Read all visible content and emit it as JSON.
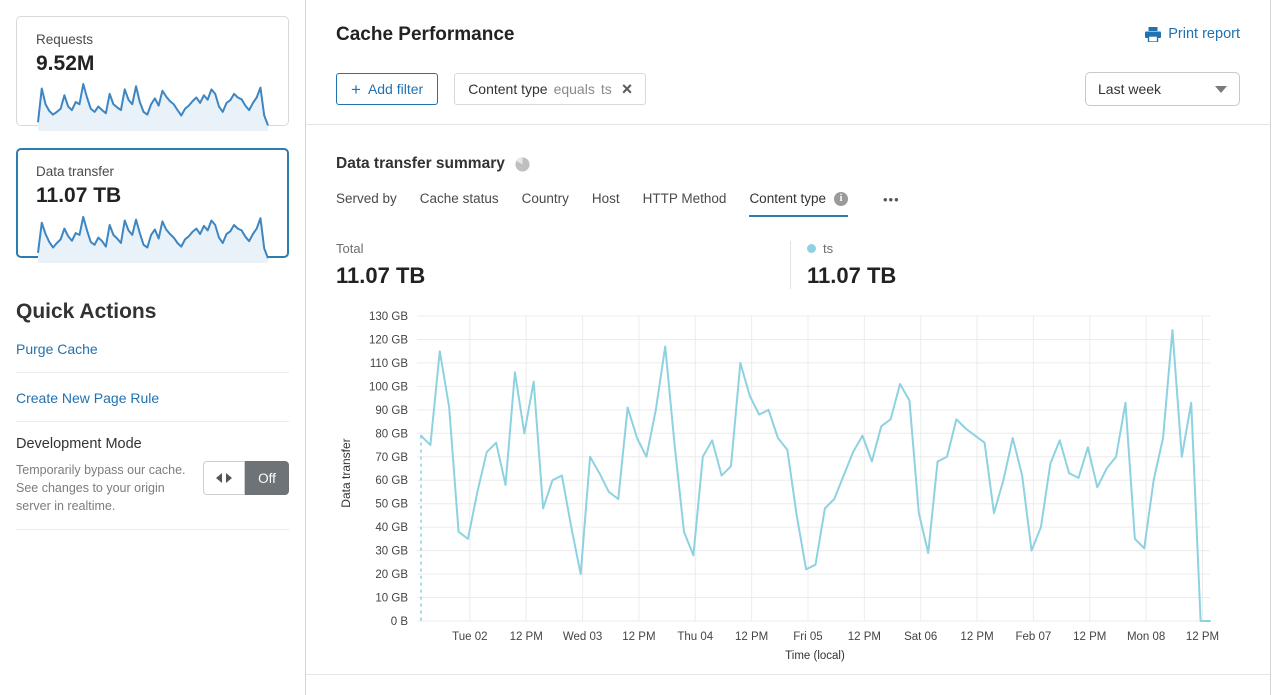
{
  "colors": {
    "accent_blue": "#2172b0",
    "tab_underline": "#2c7cb0",
    "chart_line": "#8ed2e1",
    "spark_line": "#3e86c2",
    "spark_fill": "#e9f1f9",
    "toggle_off_bg": "#6d7377",
    "grid": "#ececec",
    "text_dark": "#333333",
    "text_muted": "#7a7a7a"
  },
  "sidebar": {
    "cards": [
      {
        "label": "Requests",
        "value": "9.52M",
        "selected": false,
        "spark": [
          15,
          90,
          55,
          40,
          32,
          38,
          45,
          75,
          50,
          42,
          60,
          55,
          100,
          70,
          45,
          38,
          50,
          42,
          35,
          78,
          55,
          48,
          42,
          88,
          65,
          55,
          95,
          60,
          38,
          32,
          55,
          68,
          52,
          85,
          72,
          62,
          55,
          42,
          30,
          45,
          52,
          62,
          70,
          58,
          75,
          65,
          88,
          78,
          50,
          38,
          58,
          64,
          78,
          70,
          66,
          52,
          42,
          58,
          70,
          92,
          30,
          8
        ]
      },
      {
        "label": "Data transfer",
        "value": "11.07 TB",
        "selected": true,
        "spark": [
          18,
          85,
          60,
          42,
          30,
          40,
          48,
          72,
          55,
          45,
          62,
          58,
          98,
          68,
          42,
          36,
          52,
          44,
          32,
          80,
          58,
          50,
          40,
          90,
          68,
          58,
          92,
          62,
          36,
          30,
          58,
          70,
          50,
          88,
          70,
          60,
          52,
          40,
          32,
          48,
          55,
          65,
          72,
          60,
          78,
          68,
          90,
          80,
          52,
          40,
          60,
          66,
          80,
          72,
          68,
          54,
          44,
          60,
          72,
          95,
          28,
          6
        ]
      }
    ],
    "quick_actions": {
      "title": "Quick Actions",
      "links": [
        "Purge Cache",
        "Create New Page Rule"
      ],
      "dev_mode": {
        "title": "Development Mode",
        "description": "Temporarily bypass our cache. See changes to your origin server in realtime.",
        "state": "Off"
      }
    }
  },
  "header": {
    "title": "Cache Performance",
    "print_label": "Print report"
  },
  "filters": {
    "add_label": "Add filter",
    "chip": {
      "field": "Content type",
      "operator": "equals",
      "value": "ts"
    },
    "time_range": "Last week"
  },
  "summary": {
    "title": "Data transfer summary",
    "tabs": [
      {
        "label": "Served by",
        "active": false
      },
      {
        "label": "Cache status",
        "active": false
      },
      {
        "label": "Country",
        "active": false
      },
      {
        "label": "Host",
        "active": false
      },
      {
        "label": "HTTP Method",
        "active": false
      },
      {
        "label": "Content type",
        "active": true
      }
    ],
    "total_label": "Total",
    "total_value": "11.07 TB",
    "legend": {
      "name": "ts",
      "value": "11.07 TB"
    }
  },
  "chart_data": {
    "type": "line",
    "title": "Data transfer summary",
    "xlabel": "Time (local)",
    "ylabel": "Data transfer",
    "ylim": [
      0,
      130
    ],
    "y_tick_labels": [
      "0 B",
      "10 GB",
      "20 GB",
      "30 GB",
      "40 GB",
      "50 GB",
      "60 GB",
      "70 GB",
      "80 GB",
      "90 GB",
      "100 GB",
      "110 GB",
      "120 GB",
      "130 GB"
    ],
    "x_tick_labels": [
      "Tue 02",
      "12 PM",
      "Wed 03",
      "12 PM",
      "Thu 04",
      "12 PM",
      "Fri 05",
      "12 PM",
      "Sat 06",
      "12 PM",
      "Feb 07",
      "12 PM",
      "Mon 08",
      "12 PM"
    ],
    "x_tick_first_index": 5.2,
    "x_tick_index_step": 6,
    "point_interval_hours": 2,
    "grid": true,
    "start_dashed_to_zero": true,
    "series": [
      {
        "name": "ts",
        "unit": "GB",
        "color": "#8ed2e1",
        "values": [
          79,
          75,
          115,
          91,
          38,
          35,
          55,
          72,
          76,
          58,
          106,
          80,
          102,
          48,
          60,
          62,
          40,
          20,
          70,
          63,
          55,
          52,
          91,
          78,
          70,
          90,
          117,
          75,
          38,
          28,
          70,
          77,
          62,
          66,
          110,
          96,
          88,
          90,
          78,
          73,
          45,
          22,
          24,
          48,
          52,
          62,
          72,
          79,
          68,
          83,
          86,
          101,
          94,
          46,
          29,
          68,
          70,
          86,
          82,
          79,
          76,
          46,
          60,
          78,
          62,
          30,
          40,
          67,
          77,
          63,
          61,
          74,
          57,
          65,
          70,
          93,
          35,
          31,
          60,
          78,
          124,
          70,
          93,
          0,
          0
        ]
      }
    ]
  }
}
